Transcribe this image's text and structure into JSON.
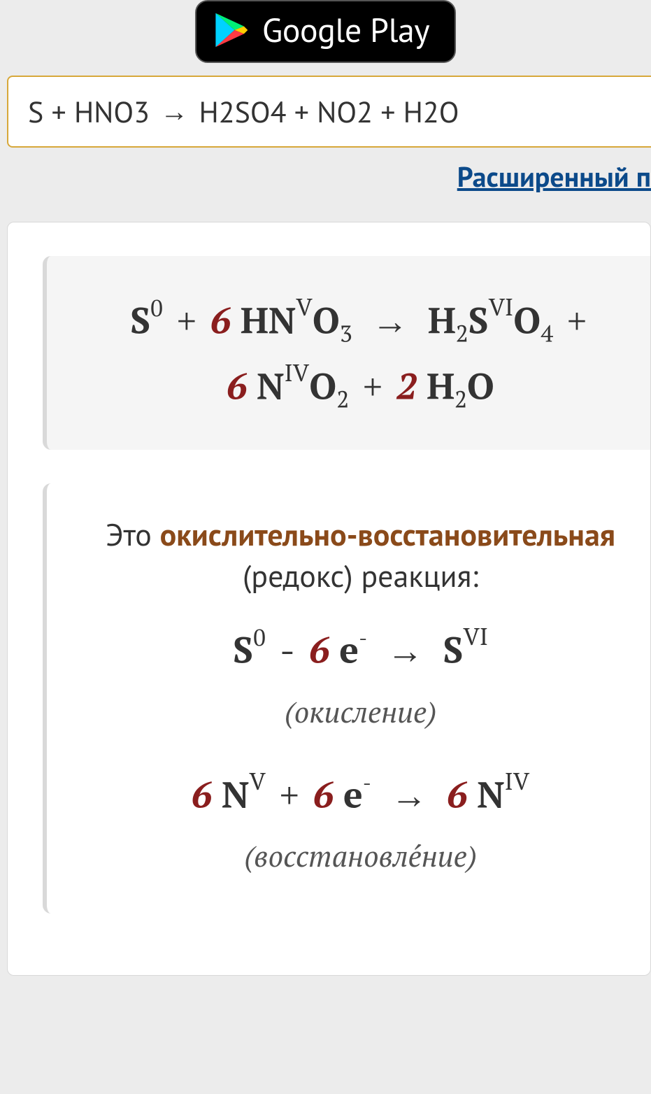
{
  "google_play": {
    "label": "Google Play",
    "logo_colors": {
      "top": "#00e3ff",
      "right": "#ffce00",
      "bottom": "#ff3a44",
      "left_overlay": "#00f076",
      "tip": "#ff3a44"
    }
  },
  "search": {
    "value": "S + HNO3 → H2SO4 + NO2 + H2O",
    "advanced_label": "Расширенный п"
  },
  "equation_main": {
    "terms_html": "S<sup>0</sup> <span class=\"op\">+</span> <span class=\"coef\">6</span> HN<span class=\"sup-roman\">V</span>O<sub>3</sub> <span class=\"arrow-big\">→</span> H<sub>2</sub>S<span class=\"sup-roman\">VI</span>O<sub>4</sub> <span class=\"op\">+</span><br><span class=\"coef\">6</span> N<span class=\"sup-roman\">IV</span>O<sub>2</sub> <span class=\"op\">+</span> <span class=\"coef\">2</span> H<sub>2</sub>O"
  },
  "description": {
    "prefix": "Это ",
    "highlight": "окислительно-восстановительная",
    "suffix": " (редокс) реакция:"
  },
  "half_ox": {
    "html": "S<sup>0</sup> <span class=\"op\">-</span> <span class=\"coef\">6</span> e<span class=\"minus-sup\">-</span> <span class=\"arrow-big\">→</span> S<span class=\"sup-roman\">VI</span>",
    "note": "(окисление)"
  },
  "half_red": {
    "html": "<span class=\"coef\">6</span> N<span class=\"sup-roman\">V</span> <span class=\"op\">+</span> <span class=\"coef\">6</span> e<span class=\"minus-sup\">-</span> <span class=\"arrow-big\">→</span> <span class=\"coef\">6</span> N<span class=\"sup-roman\">IV</span>",
    "note": "(восстановле́ние)"
  },
  "colors": {
    "coef": "#8a1e1e",
    "highlight": "#8a4a1a",
    "link": "#0c4a8a",
    "search_border": "#d7a83a",
    "panel_bg": "#f5f5f5",
    "page_bg": "#ececec"
  }
}
